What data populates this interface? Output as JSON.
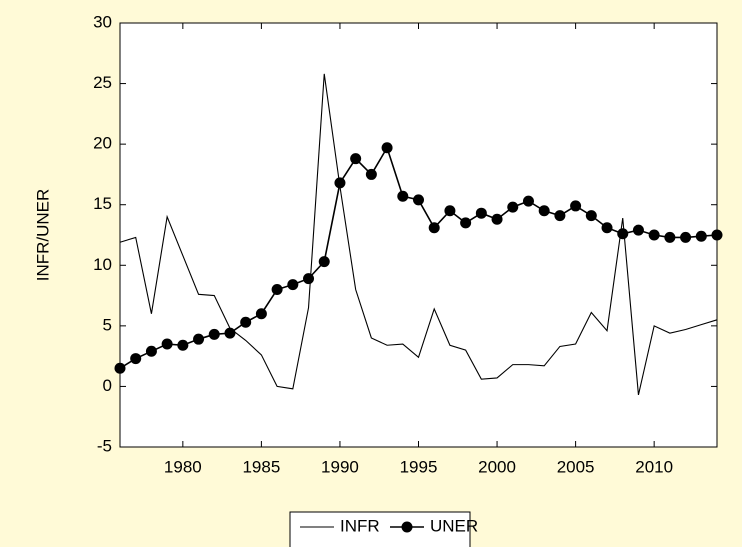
{
  "chart_data": {
    "type": "line",
    "y_label": "INFR/UNER",
    "x": [
      1976,
      1977,
      1978,
      1979,
      1980,
      1981,
      1982,
      1983,
      1984,
      1985,
      1986,
      1987,
      1988,
      1989,
      1990,
      1991,
      1992,
      1993,
      1994,
      1995,
      1996,
      1997,
      1998,
      1999,
      2000,
      2001,
      2002,
      2003,
      2004,
      2005,
      2006,
      2007,
      2008,
      2009,
      2010,
      2011,
      2012,
      2013,
      2014
    ],
    "series": [
      {
        "name": "INFR",
        "color": "#000000",
        "marker": false,
        "values": [
          11.9,
          12.3,
          6.0,
          14.0,
          10.8,
          7.6,
          7.5,
          4.8,
          3.8,
          2.6,
          0.0,
          -0.2,
          6.5,
          25.8,
          16.5,
          8.0,
          4.0,
          3.4,
          3.5,
          2.4,
          6.4,
          3.4,
          3.0,
          0.6,
          0.7,
          1.8,
          1.8,
          1.7,
          3.3,
          3.5,
          6.1,
          4.6,
          13.9,
          -0.7,
          5.0,
          4.4,
          4.7,
          5.1,
          5.5
        ]
      },
      {
        "name": "UNER",
        "color": "#000000",
        "marker": true,
        "values": [
          1.5,
          2.3,
          2.9,
          3.5,
          3.4,
          3.9,
          4.3,
          4.4,
          5.3,
          6.0,
          8.0,
          8.4,
          8.9,
          10.3,
          16.8,
          18.8,
          17.5,
          19.7,
          15.7,
          15.4,
          13.1,
          14.5,
          13.5,
          14.3,
          13.8,
          14.8,
          15.3,
          14.5,
          14.1,
          14.9,
          14.1,
          13.1,
          12.6,
          12.9,
          12.5,
          12.3,
          12.3,
          12.4,
          12.5
        ]
      }
    ],
    "xlim": [
      1976,
      2014
    ],
    "xticks": [
      1980,
      1985,
      1990,
      1995,
      2000,
      2005,
      2010
    ],
    "ylim": [
      -5,
      30
    ],
    "yticks": [
      -5,
      0,
      5,
      10,
      15,
      20,
      25,
      30
    ],
    "grid": false,
    "legend": "bottom"
  }
}
